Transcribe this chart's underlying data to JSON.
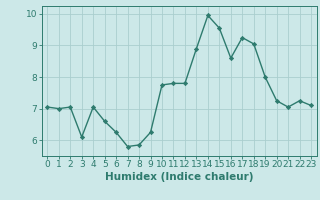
{
  "x": [
    0,
    1,
    2,
    3,
    4,
    5,
    6,
    7,
    8,
    9,
    10,
    11,
    12,
    13,
    14,
    15,
    16,
    17,
    18,
    19,
    20,
    21,
    22,
    23
  ],
  "y": [
    7.05,
    7.0,
    7.05,
    6.1,
    7.05,
    6.6,
    6.25,
    5.8,
    5.85,
    6.25,
    7.75,
    7.8,
    7.8,
    8.9,
    9.95,
    9.55,
    8.6,
    9.25,
    9.05,
    8.0,
    7.25,
    7.05,
    7.25,
    7.1
  ],
  "line_color": "#2e7b6e",
  "marker": "D",
  "marker_size": 2.2,
  "bg_color": "#cce8e8",
  "grid_color": "#aacece",
  "xlabel": "Humidex (Indice chaleur)",
  "xlim": [
    -0.5,
    23.5
  ],
  "ylim": [
    5.5,
    10.25
  ],
  "yticks": [
    6,
    7,
    8,
    9,
    10
  ],
  "xticks": [
    0,
    1,
    2,
    3,
    4,
    5,
    6,
    7,
    8,
    9,
    10,
    11,
    12,
    13,
    14,
    15,
    16,
    17,
    18,
    19,
    20,
    21,
    22,
    23
  ],
  "tick_font_size": 6.5,
  "label_font_size": 7.5,
  "line_width": 1.0
}
